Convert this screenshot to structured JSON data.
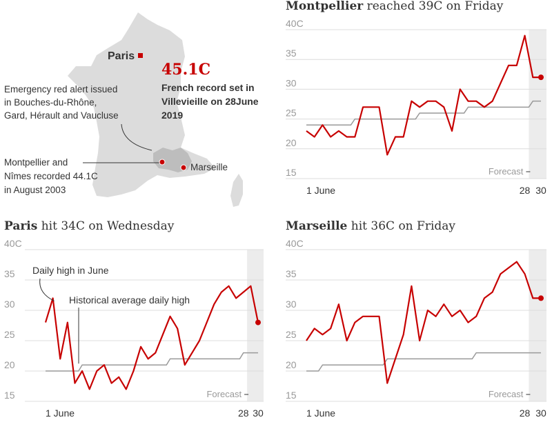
{
  "colors": {
    "accent": "#c70000",
    "average": "#999999",
    "grid": "#dcdcdc",
    "forecast": "#ececec",
    "map": "#dcdcdc",
    "text": "#333333"
  },
  "map": {
    "paris_label": "Paris",
    "record_value": "45.1C",
    "record_text": [
      "French record set in",
      "Villevieille on 28June",
      "2019"
    ],
    "alert_text": [
      "Emergency red alert issued",
      "in Bouches-du-Rhône,",
      "Gard, Hérault and Vaucluse"
    ],
    "montpellier_text": [
      "Montpellier and",
      "Nîmes recorded 44.1C",
      "in August 2003"
    ],
    "marseille_label": "Marseille"
  },
  "chart_data": [
    {
      "type": "line",
      "title_bold": "Montpellier",
      "title_rest": " reached 39C on Friday",
      "ylim": [
        15,
        40
      ],
      "yticks": [
        "15",
        "20",
        "25",
        "30",
        "35",
        "40C"
      ],
      "xticks": [
        "1 June",
        "28",
        "30"
      ],
      "forecast_label": "Forecast",
      "annotations": [],
      "x": [
        1,
        2,
        3,
        4,
        5,
        6,
        7,
        8,
        9,
        10,
        11,
        12,
        13,
        14,
        15,
        16,
        17,
        18,
        19,
        20,
        21,
        22,
        23,
        24,
        25,
        26,
        27,
        28,
        29,
        30
      ],
      "series": [
        {
          "role": "daily",
          "values": [
            23,
            22,
            24,
            22,
            23,
            22,
            22,
            27,
            27,
            27,
            19,
            22,
            22,
            28,
            27,
            28,
            28,
            27,
            23,
            30,
            28,
            28,
            27,
            28,
            31,
            34,
            34,
            39,
            32,
            32
          ]
        },
        {
          "role": "average",
          "values": [
            24,
            24,
            24,
            24,
            24,
            24,
            25,
            25,
            25,
            25,
            25,
            25,
            25,
            25,
            26,
            26,
            26,
            26,
            26,
            26,
            27,
            27,
            27,
            27,
            27,
            27,
            27,
            27,
            28,
            28
          ]
        }
      ]
    },
    {
      "type": "line",
      "title_bold": "Paris",
      "title_rest": " hit 34C on Wednesday",
      "ylim": [
        15,
        40
      ],
      "yticks": [
        "15",
        "20",
        "25",
        "30",
        "35",
        "40C"
      ],
      "xticks": [
        "1 June",
        "28",
        "30"
      ],
      "forecast_label": "Forecast",
      "annotations": [
        "Daily high in June",
        "Historical average daily high"
      ],
      "x": [
        1,
        2,
        3,
        4,
        5,
        6,
        7,
        8,
        9,
        10,
        11,
        12,
        13,
        14,
        15,
        16,
        17,
        18,
        19,
        20,
        21,
        22,
        23,
        24,
        25,
        26,
        27,
        28,
        29,
        30
      ],
      "series": [
        {
          "role": "daily",
          "values": [
            28,
            32,
            22,
            28,
            18,
            20,
            17,
            20,
            21,
            18,
            19,
            17,
            20,
            24,
            22,
            23,
            26,
            29,
            27,
            21,
            23,
            25,
            28,
            31,
            33,
            34,
            32,
            33,
            34,
            28
          ]
        },
        {
          "role": "average",
          "values": [
            20,
            20,
            20,
            20,
            20,
            21,
            21,
            21,
            21,
            21,
            21,
            21,
            21,
            21,
            21,
            21,
            21,
            22,
            22,
            22,
            22,
            22,
            22,
            22,
            22,
            22,
            22,
            23,
            23,
            23
          ]
        }
      ]
    },
    {
      "type": "line",
      "title_bold": "Marseille",
      "title_rest": " hit 36C on Friday",
      "ylim": [
        15,
        40
      ],
      "yticks": [
        "15",
        "20",
        "25",
        "30",
        "35",
        "40C"
      ],
      "xticks": [
        "1 June",
        "28",
        "30"
      ],
      "forecast_label": "Forecast",
      "annotations": [],
      "x": [
        1,
        2,
        3,
        4,
        5,
        6,
        7,
        8,
        9,
        10,
        11,
        12,
        13,
        14,
        15,
        16,
        17,
        18,
        19,
        20,
        21,
        22,
        23,
        24,
        25,
        26,
        27,
        28,
        29,
        30
      ],
      "series": [
        {
          "role": "daily",
          "values": [
            25,
            27,
            26,
            27,
            31,
            25,
            28,
            29,
            29,
            29,
            18,
            22,
            26,
            34,
            25,
            30,
            29,
            31,
            29,
            30,
            28,
            29,
            32,
            33,
            36,
            37,
            38,
            36,
            32,
            32
          ]
        },
        {
          "role": "average",
          "values": [
            20,
            20,
            21,
            21,
            21,
            21,
            21,
            21,
            21,
            21,
            22,
            22,
            22,
            22,
            22,
            22,
            22,
            22,
            22,
            22,
            22,
            23,
            23,
            23,
            23,
            23,
            23,
            23,
            23,
            23
          ]
        }
      ]
    }
  ]
}
